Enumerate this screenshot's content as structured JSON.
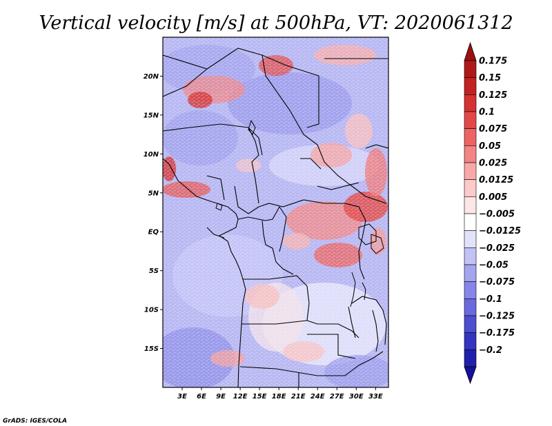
{
  "title": "Vertical velocity [m/s] at 500hPa, VT: 2020061312",
  "credit": "GrADS: IGES/COLA",
  "map": {
    "lon_range": [
      0,
      35
    ],
    "lat_range": [
      -20,
      25
    ],
    "lat_ticks": [
      {
        "value": 20,
        "label": "20N"
      },
      {
        "value": 15,
        "label": "15N"
      },
      {
        "value": 10,
        "label": "10N"
      },
      {
        "value": 5,
        "label": "5N"
      },
      {
        "value": 0,
        "label": "EQ"
      },
      {
        "value": -5,
        "label": "5S"
      },
      {
        "value": -10,
        "label": "10S"
      },
      {
        "value": -15,
        "label": "15S"
      }
    ],
    "lon_ticks": [
      {
        "value": 3,
        "label": "3E"
      },
      {
        "value": 6,
        "label": "6E"
      },
      {
        "value": 9,
        "label": "9E"
      },
      {
        "value": 12,
        "label": "12E"
      },
      {
        "value": 15,
        "label": "15E"
      },
      {
        "value": 18,
        "label": "18E"
      },
      {
        "value": 21,
        "label": "21E"
      },
      {
        "value": 24,
        "label": "24E"
      },
      {
        "value": 27,
        "label": "27E"
      },
      {
        "value": 30,
        "label": "30E"
      },
      {
        "value": 33,
        "label": "33E"
      }
    ]
  },
  "colorbar": {
    "orientation": "vertical",
    "placement": "right",
    "levels": [
      {
        "label": "0.175",
        "color": "#b01818"
      },
      {
        "label": "0.15",
        "color": "#c32222"
      },
      {
        "label": "0.125",
        "color": "#d53232"
      },
      {
        "label": "0.1",
        "color": "#e24848"
      },
      {
        "label": "0.075",
        "color": "#ec6464"
      },
      {
        "label": "0.05",
        "color": "#f38484"
      },
      {
        "label": "0.025",
        "color": "#f8a8a8"
      },
      {
        "label": "0.0125",
        "color": "#fbcaca"
      },
      {
        "label": "0.005",
        "color": "#fde6e6"
      },
      {
        "label": "−0.005",
        "color": "#ffffff"
      },
      {
        "label": "−0.0125",
        "color": "#e2e2fb"
      },
      {
        "label": "−0.025",
        "color": "#c2c2f6"
      },
      {
        "label": "−0.05",
        "color": "#a4a4f0"
      },
      {
        "label": "−0.075",
        "color": "#8686e8"
      },
      {
        "label": "−0.1",
        "color": "#6a6ade"
      },
      {
        "label": "−0.125",
        "color": "#4e4ed0"
      },
      {
        "label": "−0.175",
        "color": "#3434c0"
      },
      {
        "label": "−0.2",
        "color": "#2020aa"
      }
    ],
    "top_extend_color": "#9c1010",
    "bottom_extend_color": "#14109a"
  }
}
